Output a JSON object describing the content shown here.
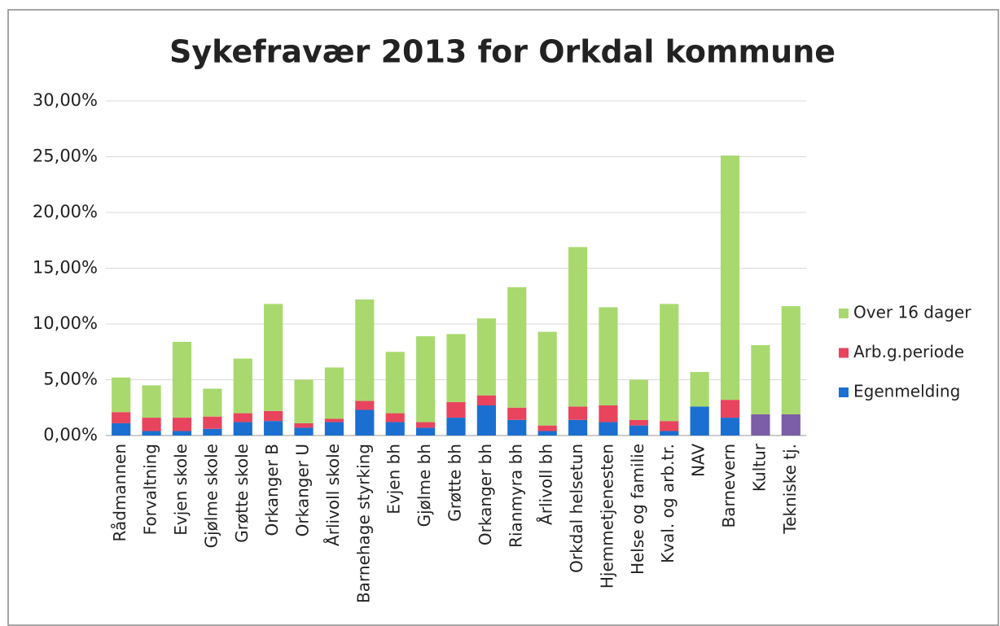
{
  "chart_data": {
    "type": "stacked_bar",
    "title": "Sykefravær 2013 for Orkdal kommune",
    "categories": [
      "Rådmannen",
      "Forvaltning",
      "Evjen skole",
      "Gjølme skole",
      "Grøtte skole",
      "Orkanger B",
      "Orkanger U",
      "Årlivoll skole",
      "Barnehage styrking",
      "Evjen bh",
      "Gjølme bh",
      "Grøtte bh",
      "Orkanger bh",
      "Rianmyra bh",
      "Årlivoll bh",
      "Orkdal helsetun",
      "Hjemmetjenesten",
      "Helse og familie",
      "Kval. og arb.tr.",
      "NAV",
      "Barnevern",
      "Kultur",
      "Tekniske tj."
    ],
    "series": [
      {
        "name": "Egenmelding",
        "color": "#1a6fd0",
        "point_colors": [
          null,
          null,
          null,
          null,
          null,
          null,
          null,
          null,
          null,
          null,
          null,
          null,
          null,
          null,
          null,
          null,
          null,
          null,
          null,
          null,
          null,
          "#7b5ea7",
          "#7b5ea7"
        ],
        "values": [
          1.1,
          0.4,
          0.4,
          0.6,
          1.2,
          1.3,
          0.7,
          1.2,
          2.3,
          1.2,
          0.7,
          1.6,
          2.7,
          1.4,
          0.4,
          1.4,
          1.2,
          0.9,
          0.4,
          2.6,
          1.6,
          1.9,
          1.9
        ]
      },
      {
        "name": "Arb.g.periode",
        "color": "#e8445e",
        "values": [
          1.0,
          1.2,
          1.2,
          1.1,
          0.8,
          0.9,
          0.4,
          0.3,
          0.8,
          0.8,
          0.5,
          1.4,
          0.9,
          1.1,
          0.5,
          1.2,
          1.5,
          0.5,
          0.9,
          0,
          1.6,
          0,
          0
        ]
      },
      {
        "name": "Over 16 dager",
        "color": "#a9d96e",
        "values": [
          3.1,
          2.9,
          6.8,
          2.5,
          4.9,
          9.6,
          3.9,
          4.6,
          9.1,
          5.5,
          7.7,
          6.1,
          6.9,
          10.8,
          8.4,
          14.3,
          8.8,
          3.6,
          10.5,
          3.1,
          21.9,
          6.2,
          9.7
        ]
      }
    ],
    "ylim": [
      0,
      30
    ],
    "yticks": [
      {
        "value": 0,
        "label": "0,00%"
      },
      {
        "value": 5,
        "label": "5,00%"
      },
      {
        "value": 10,
        "label": "10,00%"
      },
      {
        "value": 15,
        "label": "15,00%"
      },
      {
        "value": 20,
        "label": "20,00%"
      },
      {
        "value": 25,
        "label": "25,00%"
      },
      {
        "value": 30,
        "label": "30,00%"
      }
    ],
    "grid": true,
    "legend": "right"
  }
}
